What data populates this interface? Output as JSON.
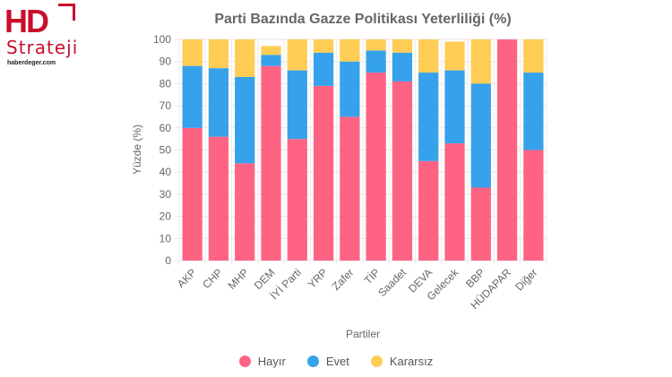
{
  "brand": {
    "logo_hd": "HD",
    "logo_strateji": "Strateji",
    "site": "haberdeger.com"
  },
  "chart_data": {
    "type": "bar",
    "stacked": true,
    "title": "Parti Bazında Gazze Politikası Yeterliliği (%)",
    "xlabel": "Partiler",
    "ylabel": "Yüzde (%)",
    "ylim": [
      0,
      100
    ],
    "yticks": [
      0,
      10,
      20,
      30,
      40,
      50,
      60,
      70,
      80,
      90,
      100
    ],
    "grid": true,
    "legend_position": "bottom",
    "categories": [
      "AKP",
      "CHP",
      "MHP",
      "DEM",
      "İYİ Parti",
      "YRP",
      "Zafer",
      "TİP",
      "Saadet",
      "DEVA",
      "Gelecek",
      "BBP",
      "HÜDAPAR",
      "Diğer"
    ],
    "series": [
      {
        "name": "Hayır",
        "color": "#ff6384",
        "values": [
          60,
          56,
          44,
          88,
          55,
          79,
          65,
          85,
          81,
          45,
          53,
          33,
          100,
          50
        ]
      },
      {
        "name": "Evet",
        "color": "#36a2eb",
        "values": [
          28,
          31,
          39,
          5,
          31,
          15,
          25,
          10,
          13,
          40,
          33,
          47,
          0,
          35
        ]
      },
      {
        "name": "Kararsız",
        "color": "#ffcd56",
        "values": [
          12,
          13,
          17,
          4,
          14,
          6,
          10,
          5,
          6,
          15,
          13,
          20,
          0,
          15
        ]
      }
    ]
  }
}
